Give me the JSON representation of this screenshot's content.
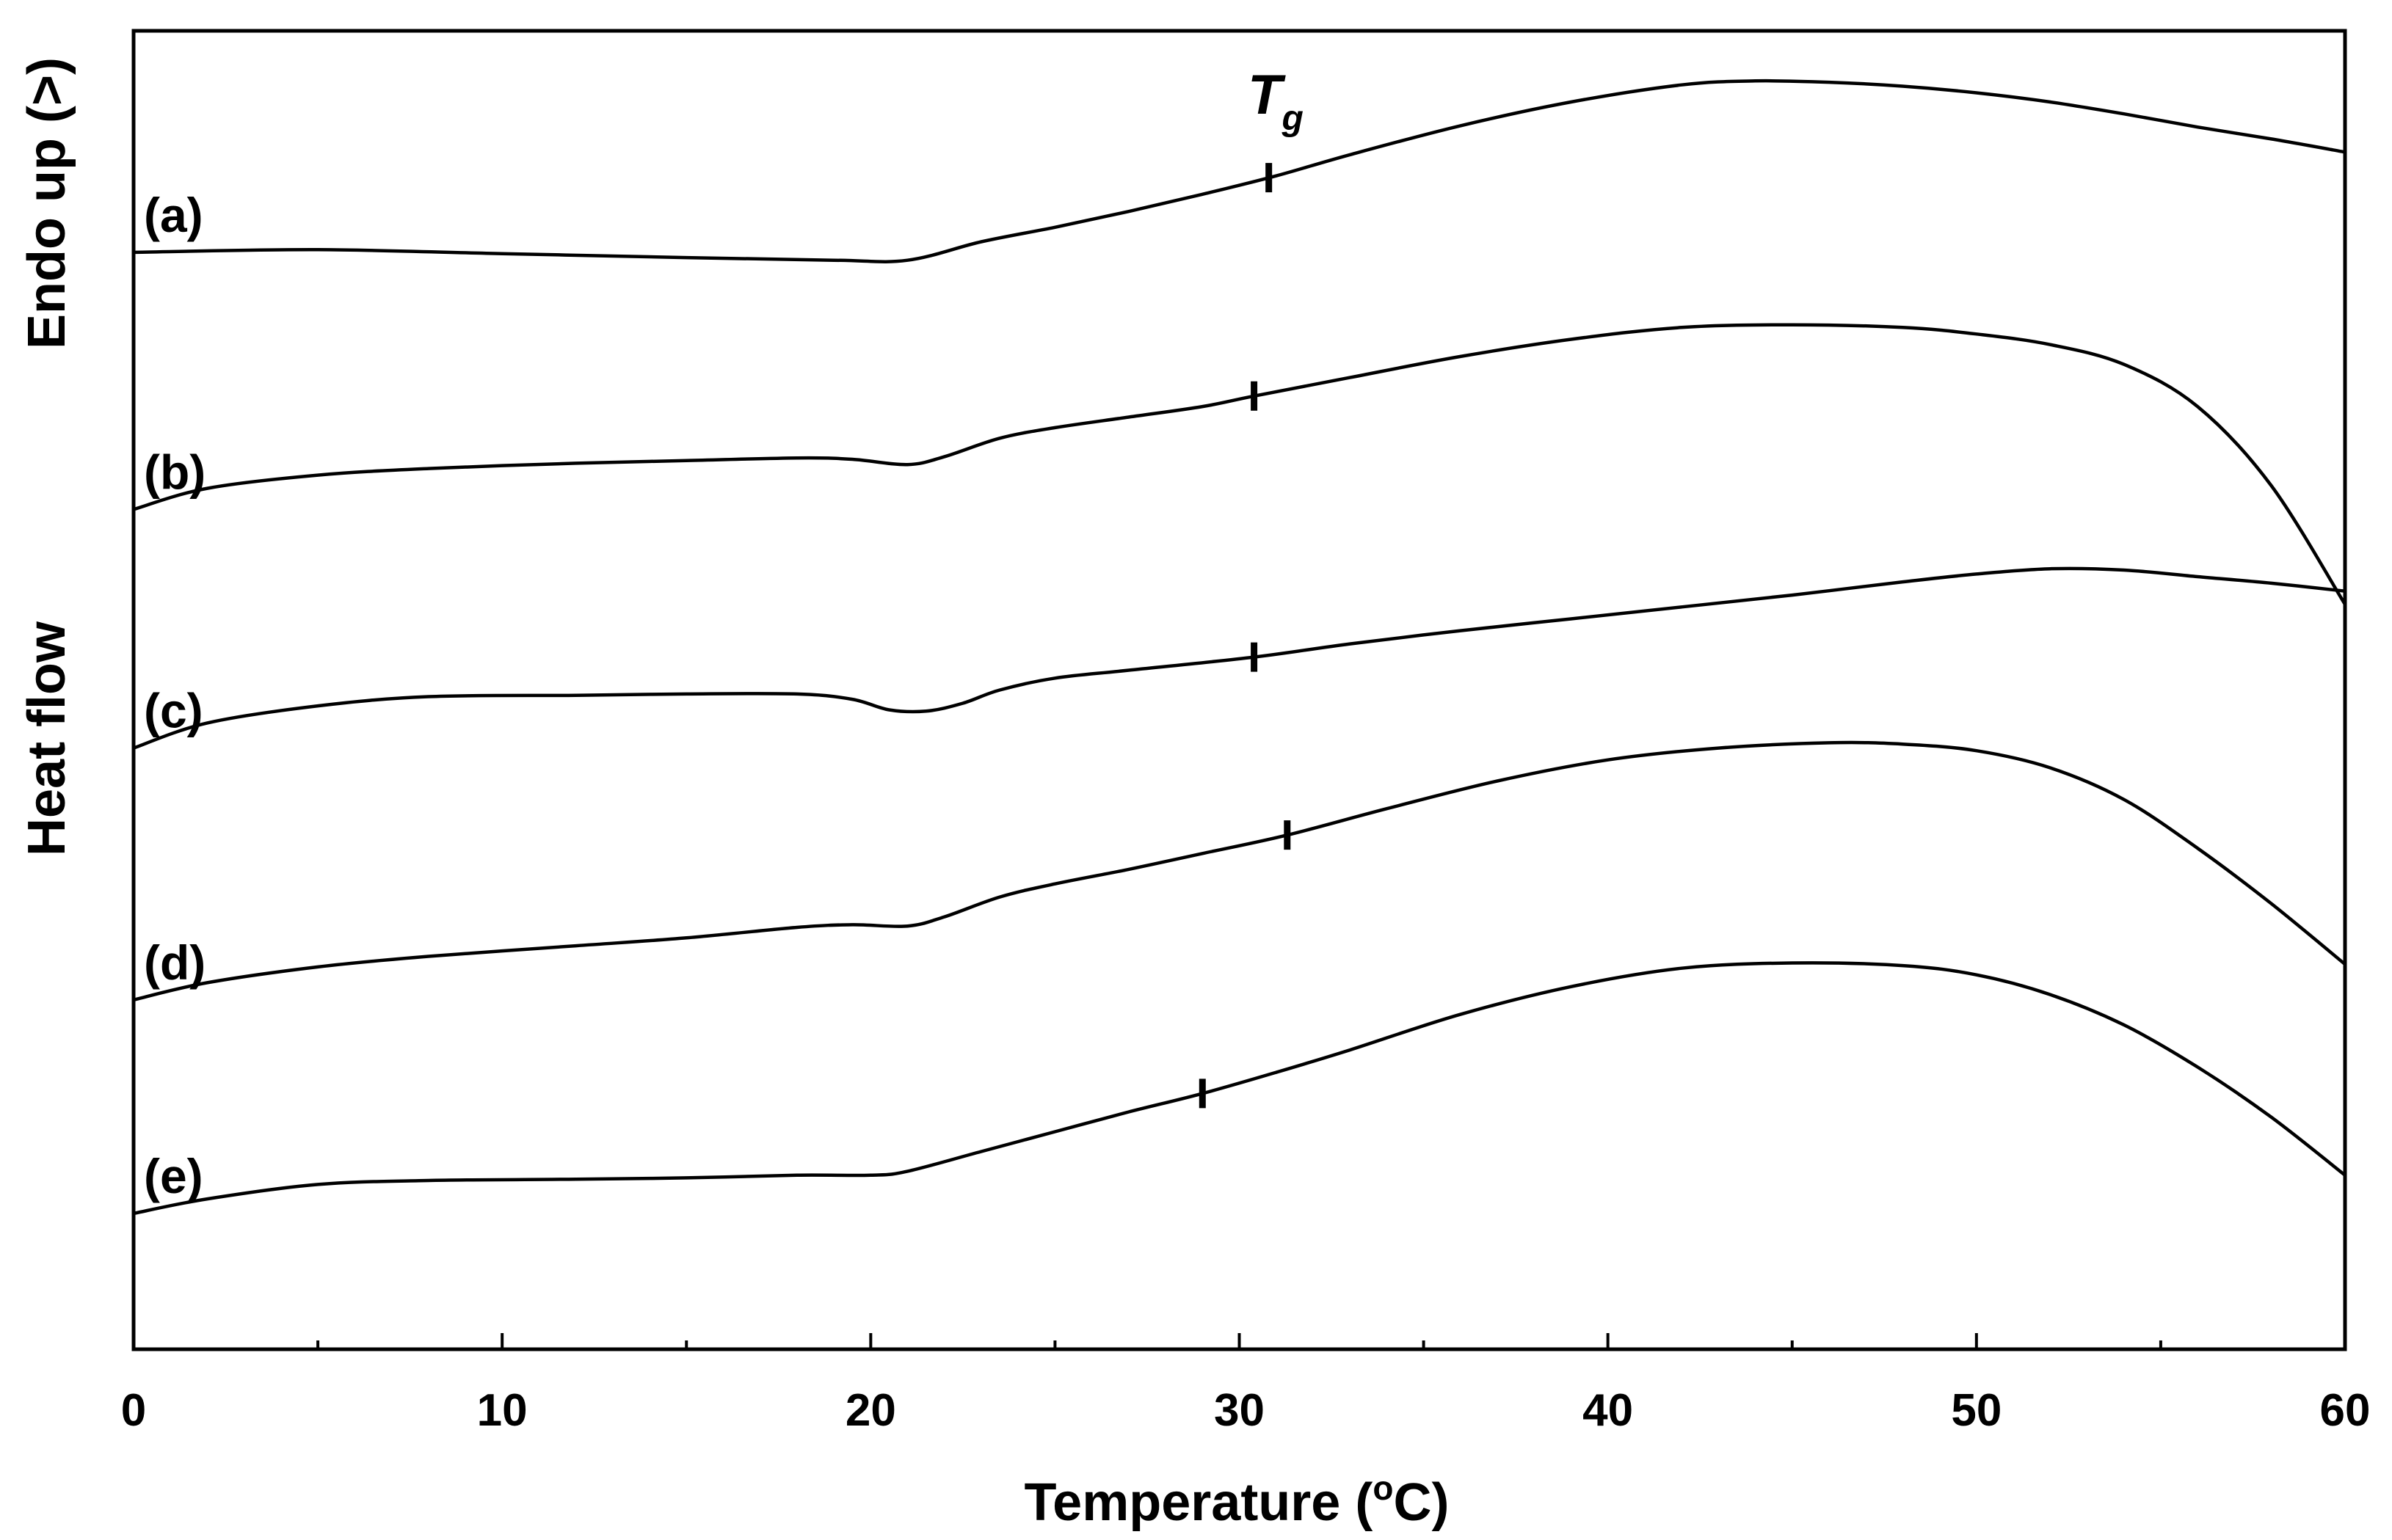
{
  "chart_data": {
    "type": "line",
    "title": "",
    "xlabel": "Temperature (oC)",
    "xlabel_main": "Temperature (",
    "xlabel_sup": "o",
    "xlabel_end": "C)",
    "ylabel_top": "Endo up (>)",
    "ylabel_bottom": "Heat flow",
    "xlim": [
      0,
      60
    ],
    "xticks": [
      0,
      10,
      20,
      30,
      40,
      50,
      60
    ],
    "xtick_labels": [
      "0",
      "10",
      "20",
      "30",
      "40",
      "50",
      "60"
    ],
    "y_units": "arbitrary (heat flow, offset traces)",
    "ylim": [
      0,
      100
    ],
    "tg_label_main": "T",
    "tg_label_sub": "g",
    "series": [
      {
        "name": "(a)",
        "tg": 30.8,
        "points": [
          [
            0,
            83.2
          ],
          [
            5,
            83.4
          ],
          [
            10,
            83.1
          ],
          [
            15,
            82.8
          ],
          [
            19,
            82.6
          ],
          [
            21,
            82.6
          ],
          [
            23,
            84.0
          ],
          [
            25,
            85.1
          ],
          [
            27,
            86.3
          ],
          [
            29,
            87.6
          ],
          [
            31,
            89.0
          ],
          [
            33,
            90.6
          ],
          [
            36,
            92.8
          ],
          [
            39,
            94.6
          ],
          [
            42,
            95.9
          ],
          [
            44,
            96.2
          ],
          [
            46,
            96.1
          ],
          [
            48,
            95.8
          ],
          [
            50,
            95.3
          ],
          [
            52,
            94.6
          ],
          [
            54,
            93.7
          ],
          [
            56,
            92.7
          ],
          [
            58,
            91.8
          ],
          [
            60,
            90.8
          ]
        ]
      },
      {
        "name": "(b)",
        "tg": 30.4,
        "points": [
          [
            0,
            63.7
          ],
          [
            2,
            65.3
          ],
          [
            5,
            66.3
          ],
          [
            8,
            66.8
          ],
          [
            12,
            67.2
          ],
          [
            15,
            67.4
          ],
          [
            18,
            67.6
          ],
          [
            19.5,
            67.5
          ],
          [
            21,
            67.1
          ],
          [
            22,
            67.7
          ],
          [
            23.5,
            69.1
          ],
          [
            25,
            69.9
          ],
          [
            27,
            70.7
          ],
          [
            29,
            71.5
          ],
          [
            30.4,
            72.3
          ],
          [
            33,
            73.7
          ],
          [
            36,
            75.3
          ],
          [
            39,
            76.6
          ],
          [
            42,
            77.5
          ],
          [
            45,
            77.7
          ],
          [
            48,
            77.5
          ],
          [
            50,
            77.0
          ],
          [
            52,
            76.2
          ],
          [
            54,
            74.7
          ],
          [
            56,
            71.5
          ],
          [
            58,
            65.5
          ],
          [
            60,
            56.5
          ]
        ]
      },
      {
        "name": "(c)",
        "tg": 30.4,
        "points": [
          [
            0,
            45.6
          ],
          [
            2,
            47.5
          ],
          [
            5,
            48.8
          ],
          [
            8,
            49.5
          ],
          [
            12,
            49.6
          ],
          [
            15,
            49.7
          ],
          [
            18,
            49.7
          ],
          [
            19.5,
            49.3
          ],
          [
            20.5,
            48.5
          ],
          [
            21.5,
            48.4
          ],
          [
            22.5,
            49.0
          ],
          [
            23.5,
            50.0
          ],
          [
            25,
            50.9
          ],
          [
            27,
            51.5
          ],
          [
            30.4,
            52.5
          ],
          [
            33,
            53.5
          ],
          [
            36,
            54.5
          ],
          [
            39,
            55.4
          ],
          [
            42,
            56.3
          ],
          [
            45,
            57.2
          ],
          [
            48,
            58.2
          ],
          [
            50,
            58.8
          ],
          [
            52,
            59.2
          ],
          [
            54,
            59.1
          ],
          [
            56,
            58.6
          ],
          [
            58,
            58.1
          ],
          [
            60,
            57.5
          ]
        ]
      },
      {
        "name": "(d)",
        "tg": 31.3,
        "points": [
          [
            0,
            26.5
          ],
          [
            2,
            27.8
          ],
          [
            5,
            29.0
          ],
          [
            8,
            29.8
          ],
          [
            12,
            30.6
          ],
          [
            15,
            31.2
          ],
          [
            18,
            32.0
          ],
          [
            19.5,
            32.2
          ],
          [
            21,
            32.1
          ],
          [
            22,
            32.8
          ],
          [
            23.5,
            34.3
          ],
          [
            25,
            35.3
          ],
          [
            27,
            36.4
          ],
          [
            29,
            37.6
          ],
          [
            31.3,
            39.0
          ],
          [
            34,
            41.0
          ],
          [
            37,
            43.1
          ],
          [
            40,
            44.7
          ],
          [
            43,
            45.6
          ],
          [
            46,
            46.0
          ],
          [
            48,
            45.9
          ],
          [
            50,
            45.4
          ],
          [
            52,
            44.1
          ],
          [
            54,
            41.7
          ],
          [
            56,
            38.0
          ],
          [
            58,
            33.8
          ],
          [
            60,
            29.2
          ]
        ]
      },
      {
        "name": "(e)",
        "tg": 29.0,
        "points": [
          [
            0,
            10.3
          ],
          [
            2,
            11.4
          ],
          [
            5,
            12.5
          ],
          [
            8,
            12.8
          ],
          [
            12,
            12.9
          ],
          [
            15,
            13.0
          ],
          [
            18,
            13.2
          ],
          [
            20,
            13.2
          ],
          [
            21,
            13.5
          ],
          [
            23,
            15.0
          ],
          [
            25,
            16.5
          ],
          [
            27,
            18.0
          ],
          [
            29,
            19.4
          ],
          [
            31,
            21.0
          ],
          [
            33,
            22.7
          ],
          [
            36,
            25.4
          ],
          [
            39,
            27.5
          ],
          [
            42,
            28.9
          ],
          [
            45,
            29.3
          ],
          [
            48,
            29.1
          ],
          [
            50,
            28.4
          ],
          [
            52,
            26.9
          ],
          [
            54,
            24.6
          ],
          [
            56,
            21.4
          ],
          [
            58,
            17.6
          ],
          [
            60,
            13.2
          ]
        ]
      }
    ]
  }
}
